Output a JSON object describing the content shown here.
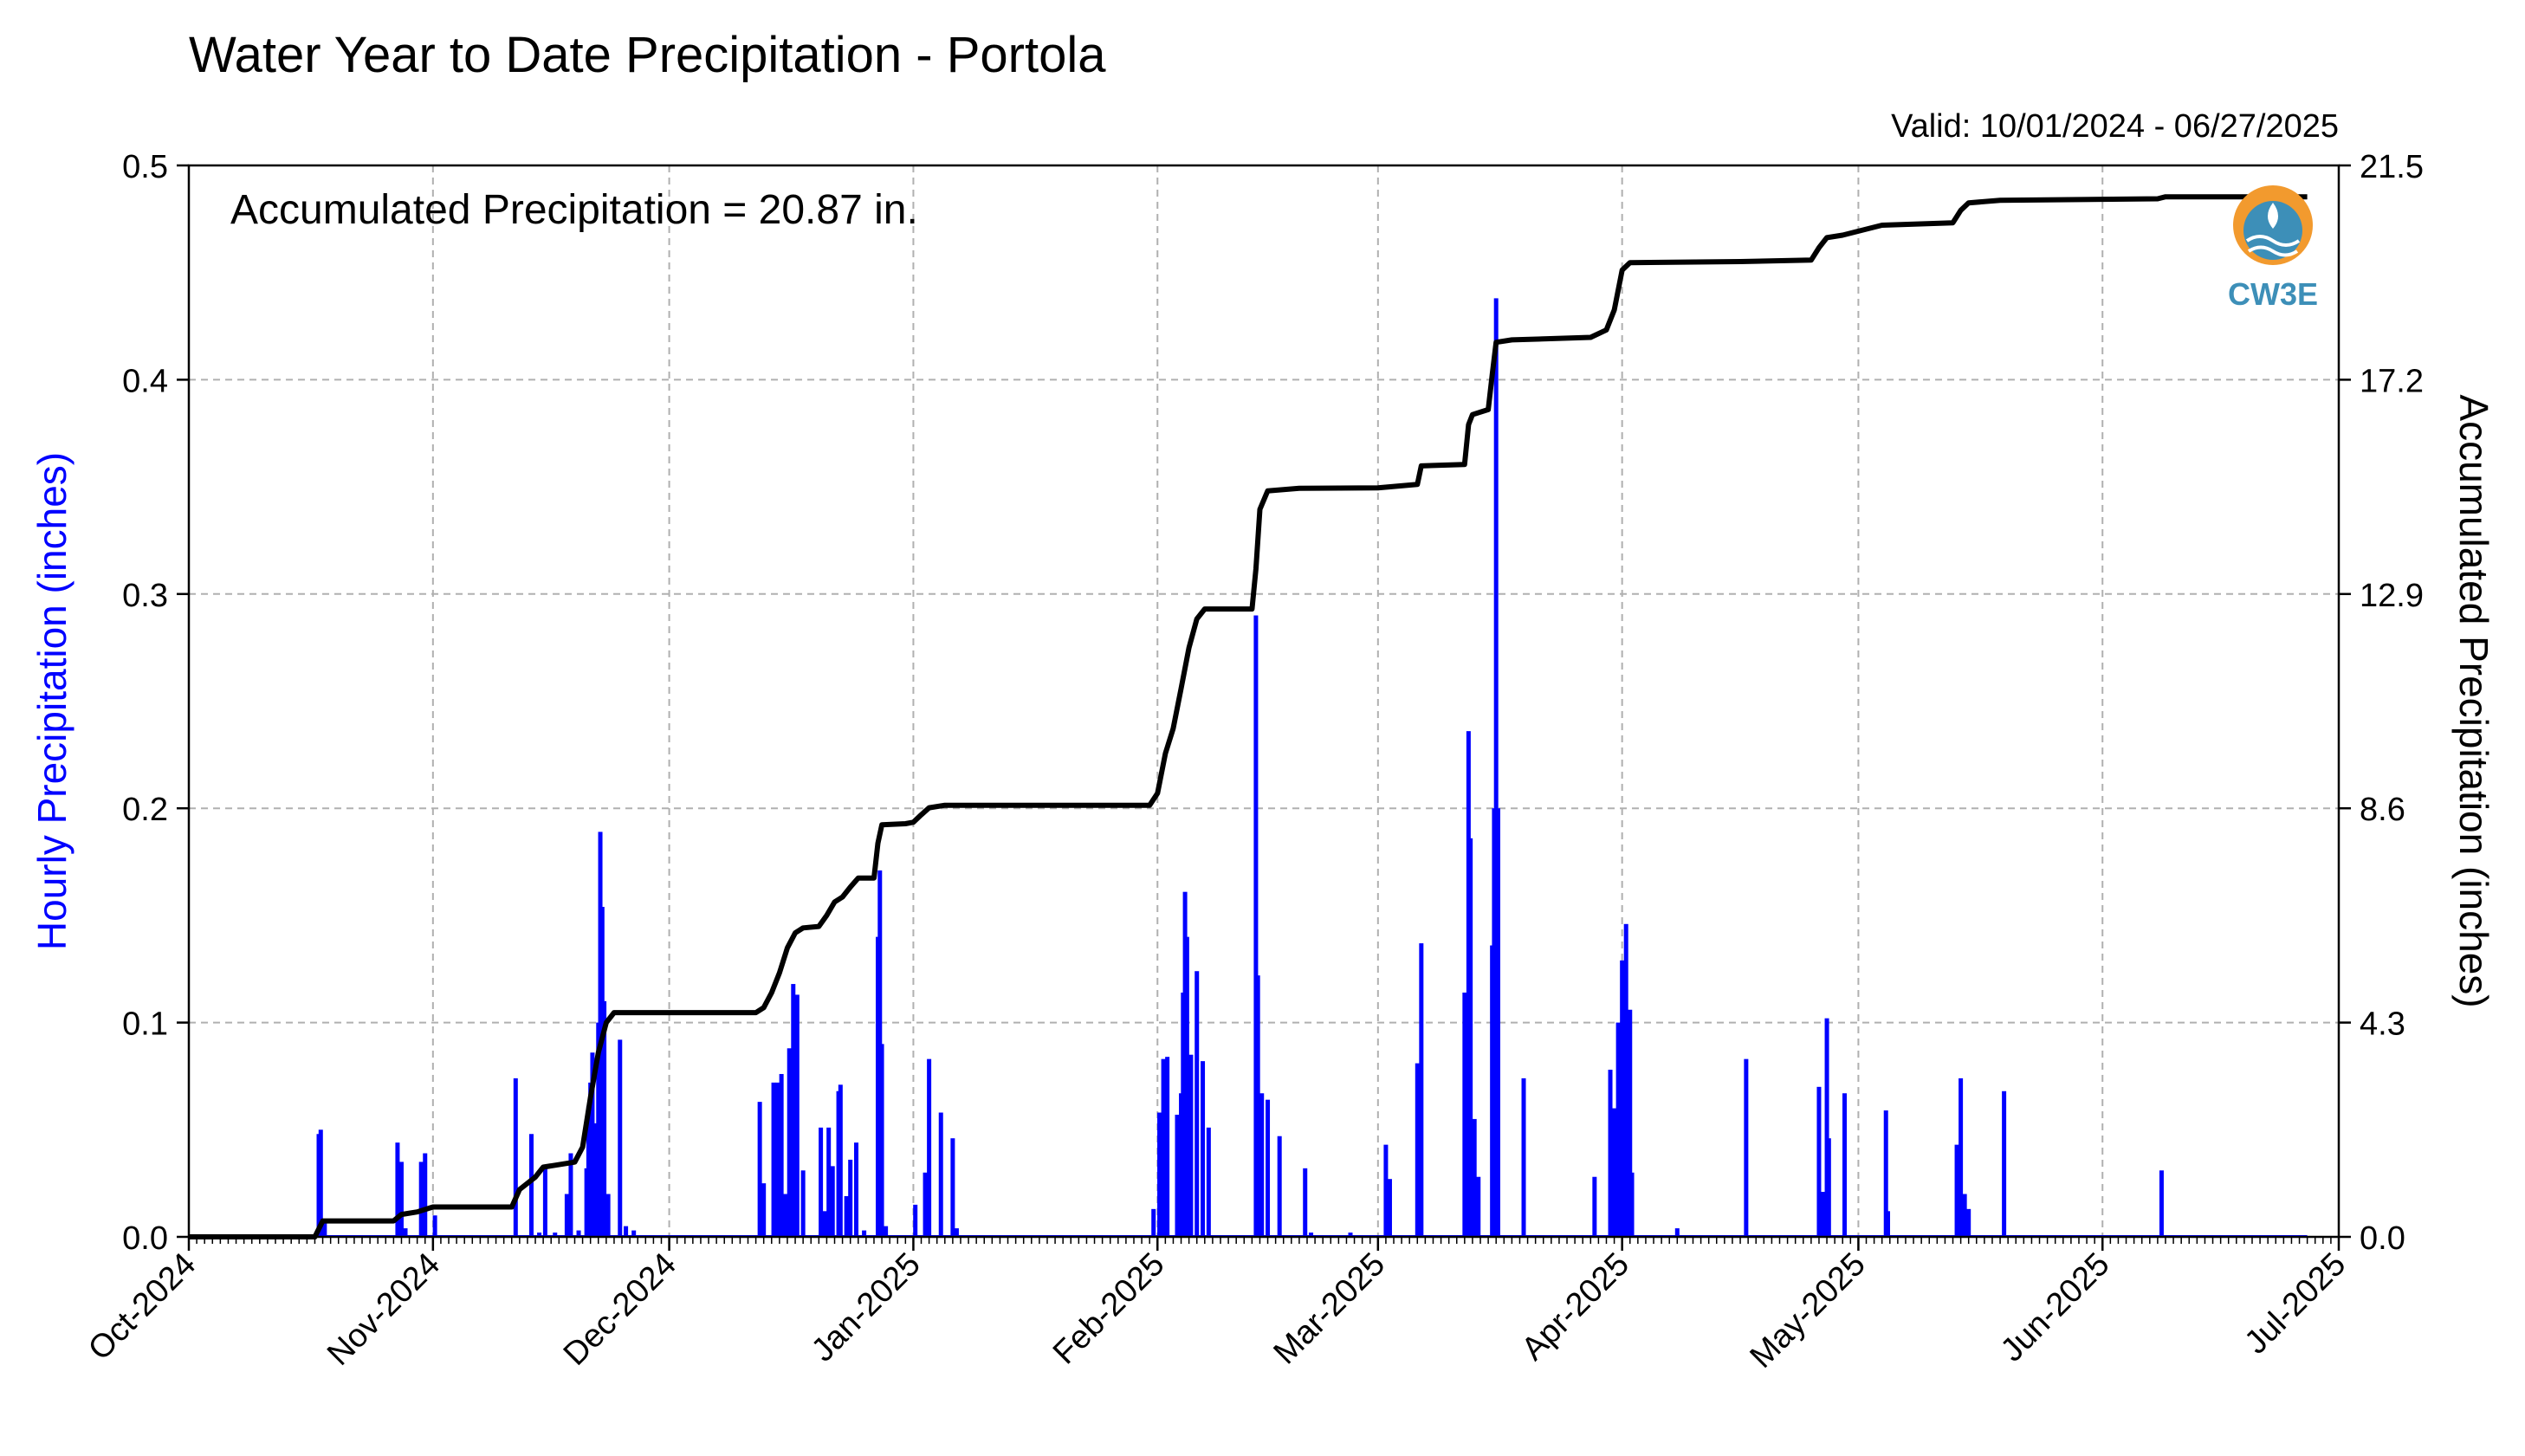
{
  "chart_data": {
    "type": "bar",
    "title": "Water Year to Date Precipitation - Portola",
    "subtitle": "Valid: 10/01/2024 - 06/27/2025",
    "annotation": "Accumulated Precipitation = 20.87 in.",
    "ylabel_left": "Hourly Precipitation (inches)",
    "ylabel_right": "Accumulated Precipitation (inches)",
    "xlim": [
      "2024-10-01",
      "2025-07-01"
    ],
    "ylim_left": [
      0,
      0.5
    ],
    "ylim_right": [
      0,
      21.5
    ],
    "x_ticks": [
      {
        "date": "2024-10-01",
        "label": "Oct-2024"
      },
      {
        "date": "2024-11-01",
        "label": "Nov-2024"
      },
      {
        "date": "2024-12-01",
        "label": "Dec-2024"
      },
      {
        "date": "2025-01-01",
        "label": "Jan-2025"
      },
      {
        "date": "2025-02-01",
        "label": "Feb-2025"
      },
      {
        "date": "2025-03-01",
        "label": "Mar-2025"
      },
      {
        "date": "2025-04-01",
        "label": "Apr-2025"
      },
      {
        "date": "2025-05-01",
        "label": "May-2025"
      },
      {
        "date": "2025-06-01",
        "label": "Jun-2025"
      },
      {
        "date": "2025-07-01",
        "label": "Jul-2025"
      }
    ],
    "y_ticks_left": [
      "0.0",
      "0.1",
      "0.2",
      "0.3",
      "0.4",
      "0.5"
    ],
    "y_ticks_right": [
      "0.0",
      "4.3",
      "8.6",
      "12.9",
      "17.2",
      "21.5"
    ],
    "grid": true,
    "logo_text": "CW3E",
    "colors": {
      "bars": "#0000ff",
      "accumulated_line": "#000000",
      "left_label": "#0000ff",
      "grid": "#b0b0b0",
      "logo_orange": "#f29a2e",
      "logo_blue": "#3d8fb8"
    },
    "series": [
      {
        "name": "Hourly Precipitation",
        "type": "bar",
        "points": [
          [
            "2024-10-17T12",
            0.048
          ],
          [
            "2024-10-17T18",
            0.05
          ],
          [
            "2024-10-18T00",
            0.008
          ],
          [
            "2024-10-18T06",
            0.008
          ],
          [
            "2024-10-27T12",
            0.044
          ],
          [
            "2024-10-28T00",
            0.035
          ],
          [
            "2024-10-28T12",
            0.004
          ],
          [
            "2024-10-30T12",
            0.035
          ],
          [
            "2024-10-31T00",
            0.039
          ],
          [
            "2024-11-01T06",
            0.01
          ],
          [
            "2024-11-11T12",
            0.074
          ],
          [
            "2024-11-13T12",
            0.048
          ],
          [
            "2024-11-14T12",
            0.002
          ],
          [
            "2024-11-15T06",
            0.033
          ],
          [
            "2024-11-16T12",
            0.002
          ],
          [
            "2024-11-18T00",
            0.02
          ],
          [
            "2024-11-18T12",
            0.039
          ],
          [
            "2024-11-19T12",
            0.003
          ],
          [
            "2024-11-20T12",
            0.032
          ],
          [
            "2024-11-20T18",
            0.061
          ],
          [
            "2024-11-21T00",
            0.072
          ],
          [
            "2024-11-21T06",
            0.086
          ],
          [
            "2024-11-21T18",
            0.053
          ],
          [
            "2024-11-22T00",
            0.1
          ],
          [
            "2024-11-22T06",
            0.189
          ],
          [
            "2024-11-22T12",
            0.154
          ],
          [
            "2024-11-22T18",
            0.11
          ],
          [
            "2024-11-23T06",
            0.02
          ],
          [
            "2024-11-24T18",
            0.092
          ],
          [
            "2024-11-25T12",
            0.005
          ],
          [
            "2024-11-26T12",
            0.003
          ],
          [
            "2024-12-12T12",
            0.063
          ],
          [
            "2024-12-13T00",
            0.025
          ],
          [
            "2024-12-14T06",
            0.072
          ],
          [
            "2024-12-14T18",
            0.072
          ],
          [
            "2024-12-15T06",
            0.076
          ],
          [
            "2024-12-15T18",
            0.02
          ],
          [
            "2024-12-16T06",
            0.088
          ],
          [
            "2024-12-16T18",
            0.118
          ],
          [
            "2024-12-17T06",
            0.113
          ],
          [
            "2024-12-18T00",
            0.031
          ],
          [
            "2024-12-20T06",
            0.051
          ],
          [
            "2024-12-20T18",
            0.012
          ],
          [
            "2024-12-21T06",
            0.051
          ],
          [
            "2024-12-21T18",
            0.033
          ],
          [
            "2024-12-22T12",
            0.068
          ],
          [
            "2024-12-22T18",
            0.071
          ],
          [
            "2024-12-23T12",
            0.019
          ],
          [
            "2024-12-24T00",
            0.036
          ],
          [
            "2024-12-24T18",
            0.044
          ],
          [
            "2024-12-25T18",
            0.003
          ],
          [
            "2024-12-27T12",
            0.14
          ],
          [
            "2024-12-27T18",
            0.171
          ],
          [
            "2024-12-28T00",
            0.09
          ],
          [
            "2024-12-28T12",
            0.005
          ],
          [
            "2025-01-01T06",
            0.015
          ],
          [
            "2025-01-02T12",
            0.03
          ],
          [
            "2025-01-03T00",
            0.083
          ],
          [
            "2025-01-04T12",
            0.058
          ],
          [
            "2025-01-06T00",
            0.046
          ],
          [
            "2025-01-06T12",
            0.004
          ],
          [
            "2025-01-31T12",
            0.013
          ],
          [
            "2025-02-01T06",
            0.058
          ],
          [
            "2025-02-01T18",
            0.083
          ],
          [
            "2025-02-02T06",
            0.084
          ],
          [
            "2025-02-03T12",
            0.057
          ],
          [
            "2025-02-04T00",
            0.067
          ],
          [
            "2025-02-04T06",
            0.114
          ],
          [
            "2025-02-04T12",
            0.161
          ],
          [
            "2025-02-04T18",
            0.14
          ],
          [
            "2025-02-05T06",
            0.085
          ],
          [
            "2025-02-06T00",
            0.124
          ],
          [
            "2025-02-06T18",
            0.082
          ],
          [
            "2025-02-07T12",
            0.051
          ],
          [
            "2025-02-13T12",
            0.29
          ],
          [
            "2025-02-13T18",
            0.122
          ],
          [
            "2025-02-14T06",
            0.067
          ],
          [
            "2025-02-15T00",
            0.064
          ],
          [
            "2025-02-16T12",
            0.047
          ],
          [
            "2025-02-19T18",
            0.032
          ],
          [
            "2025-02-20T12",
            0.002
          ],
          [
            "2025-02-25T12",
            0.002
          ],
          [
            "2025-03-02T00",
            0.043
          ],
          [
            "2025-03-02T12",
            0.027
          ],
          [
            "2025-03-06T00",
            0.081
          ],
          [
            "2025-03-06T12",
            0.137
          ],
          [
            "2025-03-12T00",
            0.114
          ],
          [
            "2025-03-12T12",
            0.236
          ],
          [
            "2025-03-12T18",
            0.186
          ],
          [
            "2025-03-13T06",
            0.055
          ],
          [
            "2025-03-13T18",
            0.028
          ],
          [
            "2025-03-15T12",
            0.136
          ],
          [
            "2025-03-15T18",
            0.2
          ],
          [
            "2025-03-16T00",
            0.438
          ],
          [
            "2025-03-16T06",
            0.2
          ],
          [
            "2025-03-19T12",
            0.074
          ],
          [
            "2025-03-28T12",
            0.028
          ],
          [
            "2025-03-30T12",
            0.078
          ],
          [
            "2025-03-31T00",
            0.06
          ],
          [
            "2025-03-31T12",
            0.1
          ],
          [
            "2025-04-01T00",
            0.129
          ],
          [
            "2025-04-01T06",
            0.124
          ],
          [
            "2025-04-01T12",
            0.146
          ],
          [
            "2025-04-02T00",
            0.106
          ],
          [
            "2025-04-02T06",
            0.03
          ],
          [
            "2025-04-08T00",
            0.004
          ],
          [
            "2025-04-16T18",
            0.083
          ],
          [
            "2025-04-26T00",
            0.07
          ],
          [
            "2025-04-26T12",
            0.021
          ],
          [
            "2025-04-27T00",
            0.102
          ],
          [
            "2025-04-27T06",
            0.046
          ],
          [
            "2025-04-29T06",
            0.067
          ],
          [
            "2025-05-04T12",
            0.059
          ],
          [
            "2025-05-04T18",
            0.012
          ],
          [
            "2025-05-13T12",
            0.043
          ],
          [
            "2025-05-14T00",
            0.074
          ],
          [
            "2025-05-14T12",
            0.02
          ],
          [
            "2025-05-15T00",
            0.013
          ],
          [
            "2025-05-19T12",
            0.068
          ],
          [
            "2025-06-08T12",
            0.031
          ]
        ]
      },
      {
        "name": "Accumulated Precipitation",
        "type": "line",
        "points": [
          [
            "2024-10-01",
            0.0
          ],
          [
            "2024-10-17",
            0.0
          ],
          [
            "2024-10-18",
            0.32
          ],
          [
            "2024-10-27",
            0.32
          ],
          [
            "2024-10-28",
            0.45
          ],
          [
            "2024-10-30",
            0.5
          ],
          [
            "2024-11-01",
            0.6
          ],
          [
            "2024-11-11",
            0.6
          ],
          [
            "2024-11-12",
            0.95
          ],
          [
            "2024-11-14",
            1.2
          ],
          [
            "2024-11-15",
            1.4
          ],
          [
            "2024-11-19",
            1.5
          ],
          [
            "2024-11-20",
            1.8
          ],
          [
            "2024-11-21",
            2.8
          ],
          [
            "2024-11-22",
            3.7
          ],
          [
            "2024-11-23",
            4.3
          ],
          [
            "2024-11-24",
            4.5
          ],
          [
            "2024-12-12",
            4.5
          ],
          [
            "2024-12-13",
            4.6
          ],
          [
            "2024-12-14",
            4.9
          ],
          [
            "2024-12-15",
            5.3
          ],
          [
            "2024-12-16",
            5.8
          ],
          [
            "2024-12-17",
            6.1
          ],
          [
            "2024-12-18",
            6.2
          ],
          [
            "2024-12-20",
            6.23
          ],
          [
            "2024-12-21",
            6.45
          ],
          [
            "2024-12-22",
            6.72
          ],
          [
            "2024-12-23",
            6.82
          ],
          [
            "2024-12-24",
            7.02
          ],
          [
            "2024-12-25",
            7.2
          ],
          [
            "2024-12-27",
            7.2
          ],
          [
            "2024-12-27T12",
            7.9
          ],
          [
            "2024-12-28",
            8.27
          ],
          [
            "2024-12-31",
            8.29
          ],
          [
            "2025-01-01",
            8.32
          ],
          [
            "2025-01-02",
            8.47
          ],
          [
            "2025-01-03",
            8.61
          ],
          [
            "2025-01-05",
            8.66
          ],
          [
            "2025-01-31",
            8.66
          ],
          [
            "2025-02-01",
            8.9
          ],
          [
            "2025-02-02",
            9.7
          ],
          [
            "2025-02-03",
            10.2
          ],
          [
            "2025-02-04",
            11.0
          ],
          [
            "2025-02-05",
            11.82
          ],
          [
            "2025-02-06",
            12.4
          ],
          [
            "2025-02-07",
            12.6
          ],
          [
            "2025-02-13",
            12.6
          ],
          [
            "2025-02-13T12",
            13.4
          ],
          [
            "2025-02-14",
            14.6
          ],
          [
            "2025-02-15",
            14.97
          ],
          [
            "2025-02-19",
            15.02
          ],
          [
            "2025-03-01",
            15.03
          ],
          [
            "2025-03-06",
            15.1
          ],
          [
            "2025-03-06T12",
            15.47
          ],
          [
            "2025-03-12",
            15.5
          ],
          [
            "2025-03-12T12",
            16.3
          ],
          [
            "2025-03-13",
            16.5
          ],
          [
            "2025-03-15",
            16.6
          ],
          [
            "2025-03-15T12",
            17.3
          ],
          [
            "2025-03-16",
            17.95
          ],
          [
            "2025-03-18",
            18.0
          ],
          [
            "2025-03-28",
            18.05
          ],
          [
            "2025-03-30",
            18.2
          ],
          [
            "2025-03-31",
            18.6
          ],
          [
            "2025-04-01",
            19.4
          ],
          [
            "2025-04-02",
            19.55
          ],
          [
            "2025-04-16",
            19.57
          ],
          [
            "2025-04-25",
            19.6
          ],
          [
            "2025-04-26",
            19.85
          ],
          [
            "2025-04-27",
            20.05
          ],
          [
            "2025-04-29",
            20.1
          ],
          [
            "2025-05-04",
            20.3
          ],
          [
            "2025-05-13",
            20.35
          ],
          [
            "2025-05-14",
            20.6
          ],
          [
            "2025-05-15",
            20.75
          ],
          [
            "2025-05-19",
            20.8
          ],
          [
            "2025-06-08",
            20.83
          ],
          [
            "2025-06-09",
            20.87
          ],
          [
            "2025-06-27",
            20.87
          ]
        ]
      }
    ]
  }
}
